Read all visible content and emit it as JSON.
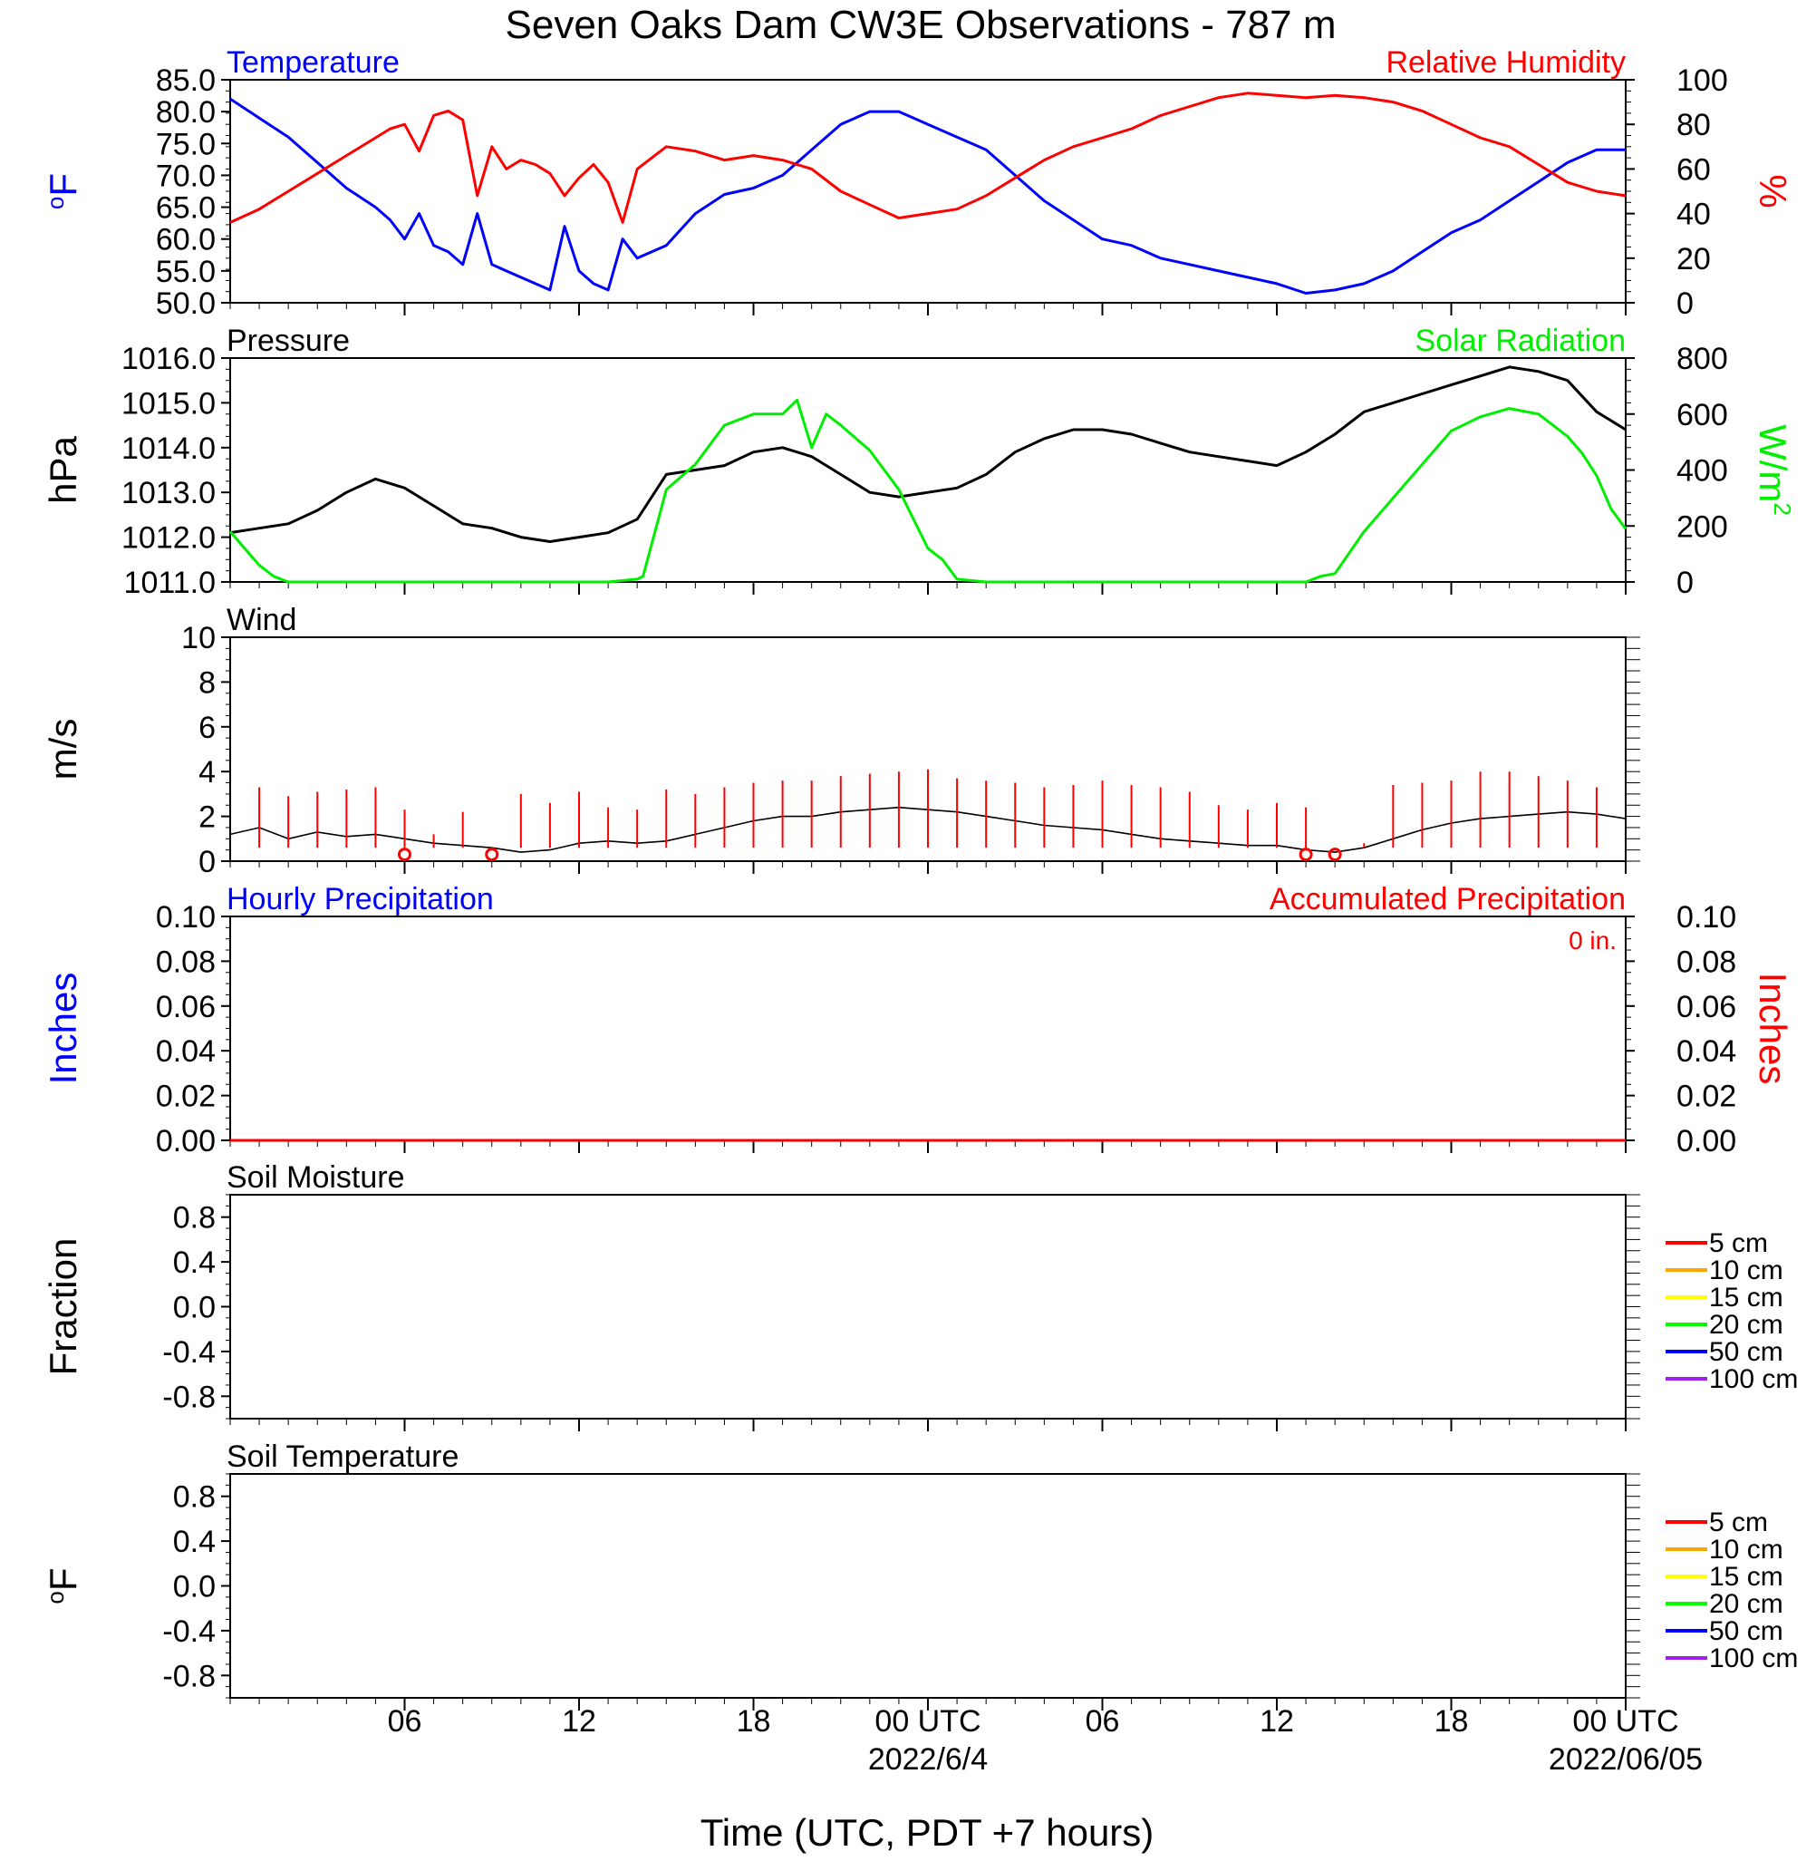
{
  "figure": {
    "title": "Seven Oaks Dam CW3E Observations - 787 m",
    "xlabel": "Time (UTC, PDT +7 hours)"
  },
  "colors": {
    "temperature": "#0000ff",
    "humidity": "#ff0000",
    "pressure": "#000000",
    "solar": "#00ee00",
    "wind": "#000000",
    "wind_barb": "#ff0000",
    "hourly_precip": "#0000ff",
    "accum_precip": "#ff0000",
    "depth_colors": [
      "#ff0000",
      "#ffa500",
      "#ffff00",
      "#00ff00",
      "#0000ff",
      "#a020f0"
    ]
  },
  "time_axis": {
    "range_hours": [
      0,
      48
    ],
    "tick_hours": [
      6,
      12,
      18,
      24,
      30,
      36,
      42,
      48
    ],
    "tick_labels": [
      "06",
      "12",
      "18",
      "00 UTC",
      "06",
      "12",
      "18",
      "00 UTC"
    ],
    "date_labels": [
      {
        "hour": 24,
        "text": "2022/6/4"
      },
      {
        "hour": 48,
        "text": "2022/06/05"
      }
    ]
  },
  "chart_data": [
    {
      "type": "line",
      "panel": "temperature_humidity",
      "title_left": "Temperature",
      "title_right": "Relative Humidity",
      "ylabel_left": "oF",
      "ylabel_right": "%",
      "ylim_left": [
        50,
        85
      ],
      "yticks_left": [
        "85.0",
        "80.0",
        "75.0",
        "70.0",
        "65.0",
        "60.0",
        "55.0",
        "50.0"
      ],
      "ylim_right": [
        0,
        100
      ],
      "yticks_right": [
        "100",
        "80",
        "60",
        "40",
        "20",
        "0"
      ],
      "series": [
        {
          "name": "Temperature",
          "axis": "left",
          "x": [
            0,
            1,
            2,
            3,
            4,
            5,
            5.5,
            6,
            6.5,
            7,
            7.5,
            8,
            8.5,
            9,
            9.5,
            10,
            10.5,
            11,
            11.5,
            12,
            12.5,
            13,
            13.5,
            14,
            15,
            16,
            17,
            18,
            19,
            20,
            21,
            22,
            23,
            24,
            25,
            26,
            27,
            28,
            29,
            30,
            31,
            32,
            33,
            34,
            35,
            36,
            37,
            38,
            39,
            40,
            41,
            42,
            43,
            44,
            45,
            46,
            47,
            48
          ],
          "y": [
            82,
            79,
            76,
            72,
            68,
            65,
            63,
            60,
            64,
            59,
            58,
            56,
            64,
            56,
            55,
            54,
            53,
            52,
            62,
            55,
            53,
            52,
            60,
            57,
            59,
            64,
            67,
            68,
            70,
            74,
            78,
            80,
            80,
            78,
            76,
            74,
            70,
            66,
            63,
            60,
            59,
            57,
            56,
            55,
            54,
            53,
            51.5,
            52,
            53,
            55,
            58,
            61,
            63,
            66,
            69,
            72,
            74,
            74
          ]
        },
        {
          "name": "Relative Humidity",
          "axis": "right",
          "x": [
            0,
            1,
            2,
            3,
            4,
            5,
            5.5,
            6,
            6.5,
            7,
            7.5,
            8,
            8.5,
            9,
            9.5,
            10,
            10.5,
            11,
            11.5,
            12,
            12.5,
            13,
            13.5,
            14,
            15,
            16,
            17,
            18,
            19,
            20,
            21,
            22,
            23,
            24,
            25,
            26,
            27,
            28,
            29,
            30,
            31,
            32,
            33,
            34,
            35,
            36,
            37,
            38,
            39,
            40,
            41,
            42,
            43,
            44,
            45,
            46,
            47,
            48
          ],
          "y": [
            36,
            42,
            50,
            58,
            66,
            74,
            78,
            80,
            68,
            84,
            86,
            82,
            48,
            70,
            60,
            64,
            62,
            58,
            48,
            56,
            62,
            54,
            36,
            60,
            70,
            68,
            64,
            66,
            64,
            60,
            50,
            44,
            38,
            40,
            42,
            48,
            56,
            64,
            70,
            74,
            78,
            84,
            88,
            92,
            94,
            93,
            92,
            93,
            92,
            90,
            86,
            80,
            74,
            70,
            62,
            54,
            50,
            48
          ]
        }
      ]
    },
    {
      "type": "line",
      "panel": "pressure_solar",
      "title_left": "Pressure",
      "title_right": "Solar Radiation",
      "ylabel_left": "hPa",
      "ylabel_right": "W/m2",
      "ylim_left": [
        1011,
        1016
      ],
      "yticks_left": [
        "1016.0",
        "1015.0",
        "1014.0",
        "1013.0",
        "1012.0",
        "1011.0"
      ],
      "ylim_right": [
        0,
        800
      ],
      "yticks_right": [
        "800",
        "600",
        "400",
        "200",
        "0"
      ],
      "series": [
        {
          "name": "Pressure",
          "axis": "left",
          "x": [
            0,
            1,
            2,
            3,
            4,
            5,
            6,
            7,
            8,
            9,
            10,
            11,
            12,
            13,
            14,
            15,
            16,
            17,
            18,
            19,
            20,
            21,
            22,
            23,
            24,
            25,
            26,
            27,
            28,
            29,
            30,
            31,
            32,
            33,
            34,
            35,
            36,
            37,
            38,
            39,
            40,
            41,
            42,
            43,
            44,
            45,
            46,
            47,
            48
          ],
          "y": [
            1012.1,
            1012.2,
            1012.3,
            1012.6,
            1013.0,
            1013.3,
            1013.1,
            1012.7,
            1012.3,
            1012.2,
            1012.0,
            1011.9,
            1012.0,
            1012.1,
            1012.4,
            1013.4,
            1013.5,
            1013.6,
            1013.9,
            1014.0,
            1013.8,
            1013.4,
            1013.0,
            1012.9,
            1013.0,
            1013.1,
            1013.4,
            1013.9,
            1014.2,
            1014.4,
            1014.4,
            1014.3,
            1014.1,
            1013.9,
            1013.8,
            1013.7,
            1013.6,
            1013.9,
            1014.3,
            1014.8,
            1015.0,
            1015.2,
            1015.4,
            1015.6,
            1015.8,
            1015.7,
            1015.5,
            1014.8,
            1014.4
          ]
        },
        {
          "name": "Solar Radiation",
          "axis": "right",
          "x": [
            0,
            0.5,
            1,
            1.5,
            2,
            3,
            6,
            9,
            12,
            13,
            14,
            14.2,
            15,
            16,
            17,
            18,
            19,
            19.5,
            20,
            20.5,
            21,
            22,
            23,
            24,
            24.5,
            25,
            26,
            26.5,
            30,
            33,
            36,
            37,
            37.5,
            38,
            39,
            40,
            41,
            42,
            43,
            44,
            45,
            46,
            46.5,
            47,
            47.5,
            48
          ],
          "y": [
            180,
            120,
            60,
            20,
            0,
            0,
            0,
            0,
            0,
            0,
            10,
            20,
            330,
            420,
            560,
            600,
            600,
            650,
            480,
            600,
            560,
            470,
            330,
            120,
            80,
            10,
            0,
            0,
            0,
            0,
            0,
            0,
            20,
            30,
            180,
            300,
            420,
            540,
            590,
            620,
            600,
            520,
            460,
            380,
            260,
            190
          ]
        }
      ]
    },
    {
      "type": "line",
      "panel": "wind",
      "title_left": "Wind",
      "ylabel_left": "m/s",
      "ylim_left": [
        0,
        10
      ],
      "yticks_left": [
        "10",
        "8",
        "6",
        "4",
        "2",
        "0"
      ],
      "series": [
        {
          "name": "Wind",
          "axis": "left",
          "x": [
            0,
            1,
            2,
            3,
            4,
            5,
            6,
            7,
            8,
            9,
            10,
            11,
            12,
            13,
            14,
            15,
            16,
            17,
            18,
            19,
            20,
            21,
            22,
            23,
            24,
            25,
            26,
            27,
            28,
            29,
            30,
            31,
            32,
            33,
            34,
            35,
            36,
            37,
            38,
            39,
            40,
            41,
            42,
            43,
            44,
            45,
            46,
            47,
            48
          ],
          "y": [
            1.2,
            1.5,
            1.0,
            1.3,
            1.1,
            1.2,
            1.0,
            0.8,
            0.7,
            0.6,
            0.4,
            0.5,
            0.8,
            0.9,
            0.8,
            0.9,
            1.2,
            1.5,
            1.8,
            2.0,
            2.0,
            2.2,
            2.3,
            2.4,
            2.3,
            2.2,
            2.0,
            1.8,
            1.6,
            1.5,
            1.4,
            1.2,
            1.0,
            0.9,
            0.8,
            0.7,
            0.7,
            0.5,
            0.4,
            0.6,
            1.0,
            1.4,
            1.7,
            1.9,
            2.0,
            2.1,
            2.2,
            2.1,
            1.9
          ]
        }
      ],
      "barbs": {
        "x": [
          1,
          2,
          3,
          4,
          5,
          6,
          7,
          8,
          9,
          10,
          11,
          12,
          13,
          14,
          15,
          16,
          17,
          18,
          19,
          20,
          21,
          22,
          23,
          24,
          25,
          26,
          27,
          28,
          29,
          30,
          31,
          32,
          33,
          34,
          35,
          36,
          37,
          38,
          39,
          40,
          41,
          42,
          43,
          44,
          45,
          46,
          47
        ],
        "speed": [
          3.3,
          2.9,
          3.1,
          3.2,
          3.3,
          2.3,
          1.2,
          2.2,
          0.5,
          3.0,
          2.6,
          3.1,
          2.4,
          2.3,
          3.2,
          3.0,
          3.3,
          3.5,
          3.6,
          3.6,
          3.8,
          3.9,
          4.0,
          4.1,
          3.7,
          3.6,
          3.5,
          3.3,
          3.4,
          3.6,
          3.4,
          3.3,
          3.1,
          2.5,
          2.3,
          2.6,
          2.4,
          0.5,
          0.8,
          3.4,
          3.5,
          3.6,
          4.0,
          4.0,
          3.8,
          3.6,
          3.3
        ],
        "calm_hours": [
          6,
          9,
          37,
          38
        ]
      }
    },
    {
      "type": "line",
      "panel": "precipitation",
      "title_left": "Hourly Precipitation",
      "title_right": "Accumulated Precipitation",
      "annotation": "0 in.",
      "ylabel_left": "Inches",
      "ylabel_right": "Inches",
      "ylim_left": [
        0,
        0.1
      ],
      "yticks_left": [
        "0.10",
        "0.08",
        "0.06",
        "0.04",
        "0.02",
        "0.00"
      ],
      "ylim_right": [
        0,
        0.1
      ],
      "yticks_right": [
        "0.10",
        "0.08",
        "0.06",
        "0.04",
        "0.02",
        "0.00"
      ],
      "series": [
        {
          "name": "Hourly Precipitation",
          "axis": "left",
          "x": [
            0,
            48
          ],
          "y": [
            0,
            0
          ]
        },
        {
          "name": "Accumulated Precipitation",
          "axis": "left",
          "x": [
            0,
            48
          ],
          "y": [
            0,
            0
          ]
        }
      ]
    },
    {
      "type": "line",
      "panel": "soil_moisture",
      "title_left": "Soil Moisture",
      "ylabel_left": "Fraction",
      "ylim_left": [
        -1,
        1
      ],
      "yticks_left": [
        "0.8",
        "0.4",
        "0.0",
        "-0.4",
        "-0.8"
      ],
      "legend": [
        "5 cm",
        "10 cm",
        "15 cm",
        "20 cm",
        "50 cm",
        "100 cm"
      ],
      "series": []
    },
    {
      "type": "line",
      "panel": "soil_temperature",
      "title_left": "Soil Temperature",
      "ylabel_left": "oF",
      "ylim_left": [
        -1,
        1
      ],
      "yticks_left": [
        "0.8",
        "0.4",
        "0.0",
        "-0.4",
        "-0.8"
      ],
      "legend": [
        "5 cm",
        "10 cm",
        "15 cm",
        "20 cm",
        "50 cm",
        "100 cm"
      ],
      "series": []
    }
  ]
}
